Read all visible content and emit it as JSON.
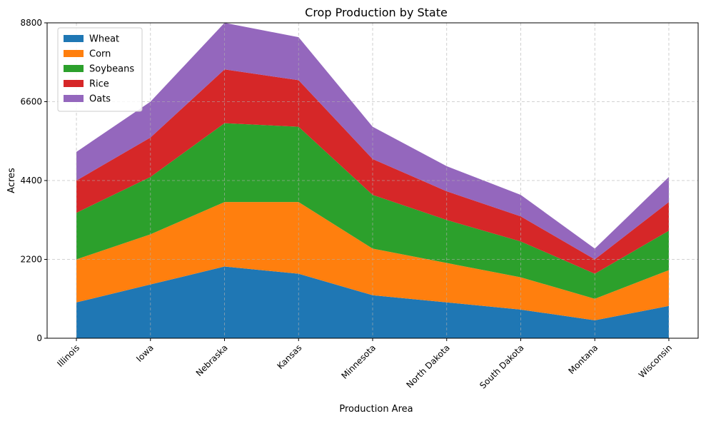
{
  "chart_data": {
    "type": "area",
    "stacked": true,
    "title": "Crop Production by State",
    "xlabel": "Production Area",
    "ylabel": "Acres",
    "categories": [
      "Illinois",
      "Iowa",
      "Nebraska",
      "Kansas",
      "Minnesota",
      "North Dakota",
      "South Dakota",
      "Montana",
      "Wisconsin"
    ],
    "ylim": [
      0,
      8800
    ],
    "yticks": [
      "0",
      "2200",
      "4400",
      "6600",
      "8800"
    ],
    "grid": true,
    "legend_position": "top-left",
    "series": [
      {
        "name": "Wheat",
        "color": "#1f77b4",
        "values": [
          1000,
          1500,
          2000,
          1800,
          1200,
          1000,
          800,
          500,
          900
        ]
      },
      {
        "name": "Corn",
        "color": "#ff7f0e",
        "values": [
          1200,
          1400,
          1800,
          2000,
          1300,
          1100,
          900,
          600,
          1000
        ]
      },
      {
        "name": "Soybeans",
        "color": "#2ca02c",
        "values": [
          1300,
          1600,
          2200,
          2100,
          1500,
          1200,
          1000,
          700,
          1100
        ]
      },
      {
        "name": "Rice",
        "color": "#d62728",
        "values": [
          900,
          1100,
          1500,
          1300,
          1000,
          800,
          700,
          400,
          800
        ]
      },
      {
        "name": "Oats",
        "color": "#9467bd",
        "values": [
          800,
          1000,
          1300,
          1200,
          900,
          700,
          600,
          300,
          700
        ]
      }
    ]
  }
}
